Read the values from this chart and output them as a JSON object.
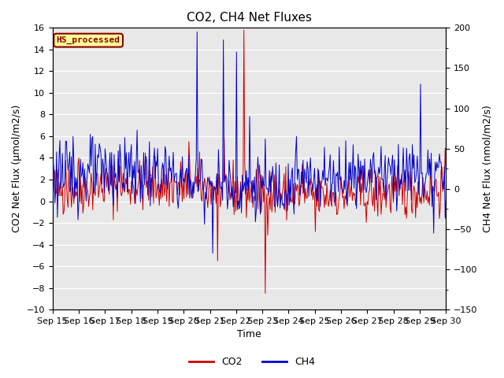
{
  "title": "CO2, CH4 Net Fluxes",
  "xlabel": "Time",
  "ylabel_left": "CO2 Net Flux (μmol/m2/s)",
  "ylabel_right": "CH4 Net Flux (nmol/m2/s)",
  "ylim_left": [
    -10,
    16
  ],
  "ylim_right": [
    -150,
    200
  ],
  "yticks_left": [
    -10,
    -8,
    -6,
    -4,
    -2,
    0,
    2,
    4,
    6,
    8,
    10,
    12,
    14,
    16
  ],
  "yticks_right": [
    -150,
    -100,
    -50,
    0,
    50,
    100,
    150,
    200
  ],
  "xtick_labels": [
    "Sep 15",
    "Sep 16",
    "Sep 17",
    "Sep 18",
    "Sep 19",
    "Sep 20",
    "Sep 21",
    "Sep 22",
    "Sep 23",
    "Sep 24",
    "Sep 25",
    "Sep 26",
    "Sep 27",
    "Sep 28",
    "Sep 29",
    "Sep 30"
  ],
  "co2_color": "#CC0000",
  "ch4_color": "#0000CC",
  "legend_co2": "CO2",
  "legend_ch4": "CH4",
  "annotation_text": "HS_processed",
  "annotation_bg": "#FFFF99",
  "annotation_edge": "#8B0000",
  "plot_bg": "#E8E8E8",
  "fig_bg": "#FFFFFF",
  "grid_color": "#FFFFFF",
  "title_fontsize": 11,
  "axis_label_fontsize": 9,
  "tick_fontsize": 8,
  "legend_fontsize": 9,
  "n_points": 480,
  "co2_seed": 42,
  "ch4_seed": 123
}
